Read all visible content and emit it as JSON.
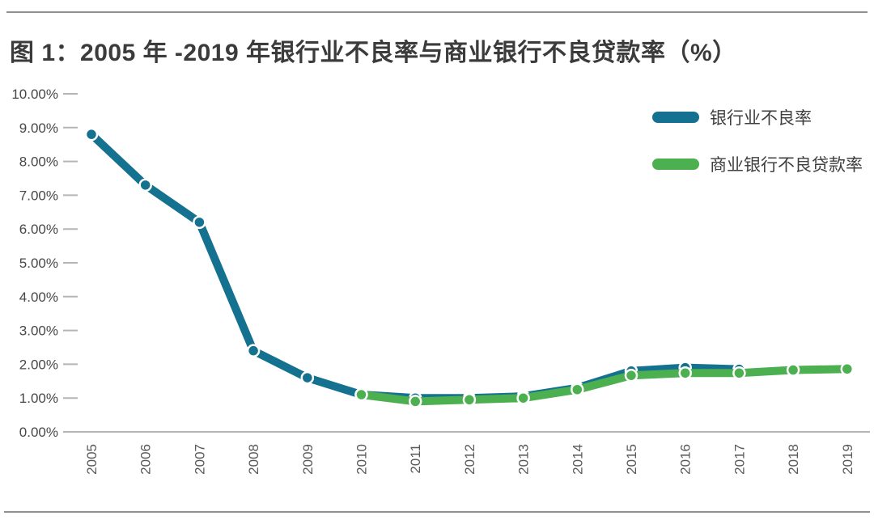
{
  "chart_data": {
    "type": "line",
    "title": "图 1：2005 年 -2019 年银行业不良率与商业银行不良贷款率（%）",
    "categories": [
      "2005",
      "2006",
      "2007",
      "2008",
      "2009",
      "2010",
      "2011",
      "2012",
      "2013",
      "2014",
      "2015",
      "2016",
      "2017",
      "2018",
      "2019"
    ],
    "series": [
      {
        "name": "银行业不良率",
        "color": "#14718f",
        "values": [
          8.8,
          7.3,
          6.2,
          2.4,
          1.6,
          1.1,
          1.0,
          1.0,
          1.05,
          1.3,
          1.8,
          1.9,
          1.85,
          null,
          null
        ]
      },
      {
        "name": "商业银行不良贷款率",
        "color": "#4caf50",
        "values": [
          null,
          null,
          null,
          null,
          null,
          1.1,
          0.9,
          0.95,
          1.0,
          1.25,
          1.67,
          1.74,
          1.74,
          1.83,
          1.86
        ]
      }
    ],
    "xlabel": "",
    "ylabel": "",
    "ylim": [
      0,
      10
    ],
    "ytick_labels": [
      "0.00%",
      "1.00%",
      "2.00%",
      "3.00%",
      "4.00%",
      "5.00%",
      "6.00%",
      "7.00%",
      "8.00%",
      "9.00%",
      "10.00%"
    ],
    "legend_position": "top-right",
    "grid": "tick-dashes-only",
    "marker": "circle-white-ring"
  },
  "colors": {
    "divider": "#909090",
    "axis": "#b5b5b5",
    "title_text": "#3b3b3b",
    "y_label_text": "#474747",
    "x_label_text": "#595959",
    "legend_text": "#3f3f3f"
  }
}
